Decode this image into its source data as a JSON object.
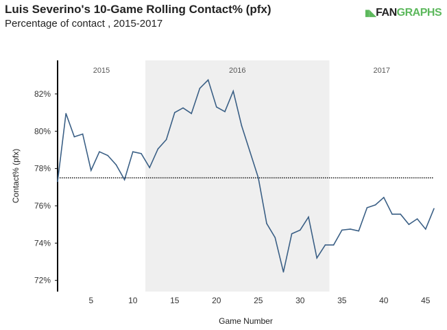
{
  "header": {
    "title": "Luis Severino's 10-Game Rolling Contact% (pfx)",
    "subtitle": "Percentage of contact , 2015-2017",
    "logo": "FANGRAPHS"
  },
  "chart_data": {
    "type": "line",
    "title": "Luis Severino's 10-Game Rolling Contact% (pfx)",
    "subtitle": "Percentage of contact , 2015-2017",
    "xlabel": "Game Number",
    "ylabel": "Contact% (pfx)",
    "xlim": [
      1,
      46
    ],
    "ylim": [
      71.4,
      83.8
    ],
    "xticks": [
      5,
      10,
      15,
      20,
      25,
      30,
      35,
      40,
      45
    ],
    "yticks": [
      72,
      74,
      76,
      78,
      80,
      82
    ],
    "ytick_labels": [
      "72%",
      "74%",
      "76%",
      "78%",
      "80%",
      "82%"
    ],
    "line_color": "#3a5f85",
    "reference_line": {
      "value": 77.5,
      "style": "dotted"
    },
    "seasons": [
      {
        "label": "2015",
        "start": 1,
        "end": 11.5,
        "shaded": false
      },
      {
        "label": "2016",
        "start": 11.5,
        "end": 33.5,
        "shaded": true
      },
      {
        "label": "2017",
        "start": 33.5,
        "end": 46,
        "shaded": false
      }
    ],
    "x": [
      1,
      2,
      3,
      4,
      5,
      6,
      7,
      8,
      9,
      10,
      11,
      12,
      13,
      14,
      15,
      16,
      17,
      18,
      19,
      20,
      21,
      22,
      23,
      24,
      25,
      26,
      27,
      28,
      29,
      30,
      31,
      32,
      33,
      34,
      35,
      36,
      37,
      38,
      39,
      40,
      41,
      42,
      43,
      44,
      45,
      46
    ],
    "values": [
      77.3,
      80.95,
      79.7,
      79.85,
      77.9,
      78.9,
      78.7,
      78.2,
      77.4,
      78.9,
      78.8,
      78.05,
      79.05,
      79.55,
      81.0,
      81.25,
      80.95,
      82.3,
      82.75,
      81.3,
      81.05,
      82.15,
      80.3,
      78.9,
      77.5,
      75.05,
      74.3,
      72.45,
      74.5,
      74.7,
      75.4,
      73.2,
      73.9,
      73.9,
      74.7,
      74.75,
      74.65,
      75.9,
      76.05,
      76.45,
      75.55,
      75.55,
      75.0,
      75.3,
      74.75,
      75.85
    ]
  }
}
